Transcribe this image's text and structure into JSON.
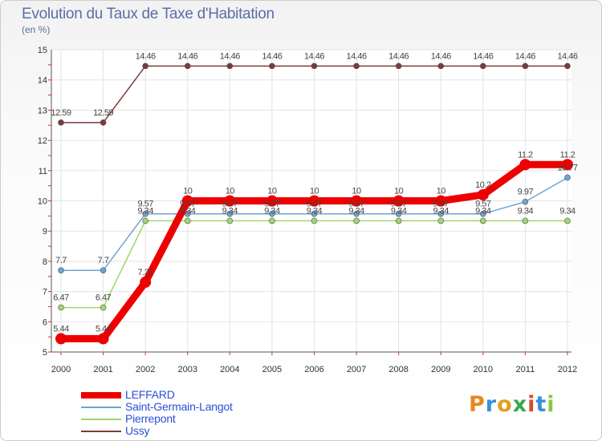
{
  "header": {
    "title": "Evolution du Taux de Taxe d'Habitation",
    "unit": "(en %)"
  },
  "logo": {
    "text": "Proxiti",
    "colors": [
      "#e8861f",
      "#3a8fd8",
      "#e0a020",
      "#3aa84a",
      "#d94a2a",
      "#3a8fd8",
      "#8dc63f"
    ]
  },
  "chart_data": {
    "type": "line",
    "title": "Evolution du Taux de Taxe d'Habitation",
    "ylabel": "(en %)",
    "xlabel": "",
    "ylim": [
      5,
      15
    ],
    "yticks": [
      "5",
      "6",
      "7",
      "8",
      "9",
      "10",
      "11",
      "12",
      "13",
      "14",
      "15"
    ],
    "categories": [
      "2000",
      "2001",
      "2002",
      "2003",
      "2004",
      "2005",
      "2006",
      "2007",
      "2008",
      "2009",
      "2010",
      "2011",
      "2012"
    ],
    "legend_position": "bottom-left",
    "series": [
      {
        "name": "LEFFARD",
        "color": "#ee0000",
        "emphasis": true,
        "values": [
          5.44,
          5.44,
          7.31,
          10,
          10,
          10,
          10,
          10,
          10,
          10,
          10.2,
          11.2,
          11.2
        ],
        "labels": [
          "5.44",
          "5.44",
          "7.31",
          "10",
          "10",
          "10",
          "10",
          "10",
          "10",
          "10",
          "10.2",
          "11.2",
          "11.2"
        ]
      },
      {
        "name": "Saint-Germain-Langot",
        "color": "#6ea4cf",
        "emphasis": false,
        "values": [
          7.7,
          7.7,
          9.57,
          9.57,
          9.57,
          9.57,
          9.57,
          9.57,
          9.57,
          9.57,
          9.57,
          9.97,
          10.77
        ],
        "labels": [
          "7.7",
          "7.7",
          "9.57",
          "9.57",
          "9.57",
          "9.57",
          "9.57",
          "9.57",
          "9.57",
          "9.57",
          "9.57",
          "9.97",
          "10.77"
        ]
      },
      {
        "name": "Pierrepont",
        "color": "#9ed86a",
        "emphasis": false,
        "values": [
          6.47,
          6.47,
          9.34,
          9.34,
          9.34,
          9.34,
          9.34,
          9.34,
          9.34,
          9.34,
          9.34,
          9.34,
          9.34
        ],
        "labels": [
          "6.47",
          "6.47",
          "9.34",
          "9.34",
          "9.34",
          "9.34",
          "9.34",
          "9.34",
          "9.34",
          "9.34",
          "9.34",
          "9.34",
          "9.34"
        ]
      },
      {
        "name": "Ussy",
        "color": "#7b3b3b",
        "emphasis": false,
        "values": [
          12.59,
          12.59,
          14.46,
          14.46,
          14.46,
          14.46,
          14.46,
          14.46,
          14.46,
          14.46,
          14.46,
          14.46,
          14.46
        ],
        "labels": [
          "12.59",
          "12.59",
          "14.46",
          "14.46",
          "14.46",
          "14.46",
          "14.46",
          "14.46",
          "14.46",
          "14.46",
          "14.46",
          "14.46",
          "14.46"
        ]
      }
    ]
  }
}
